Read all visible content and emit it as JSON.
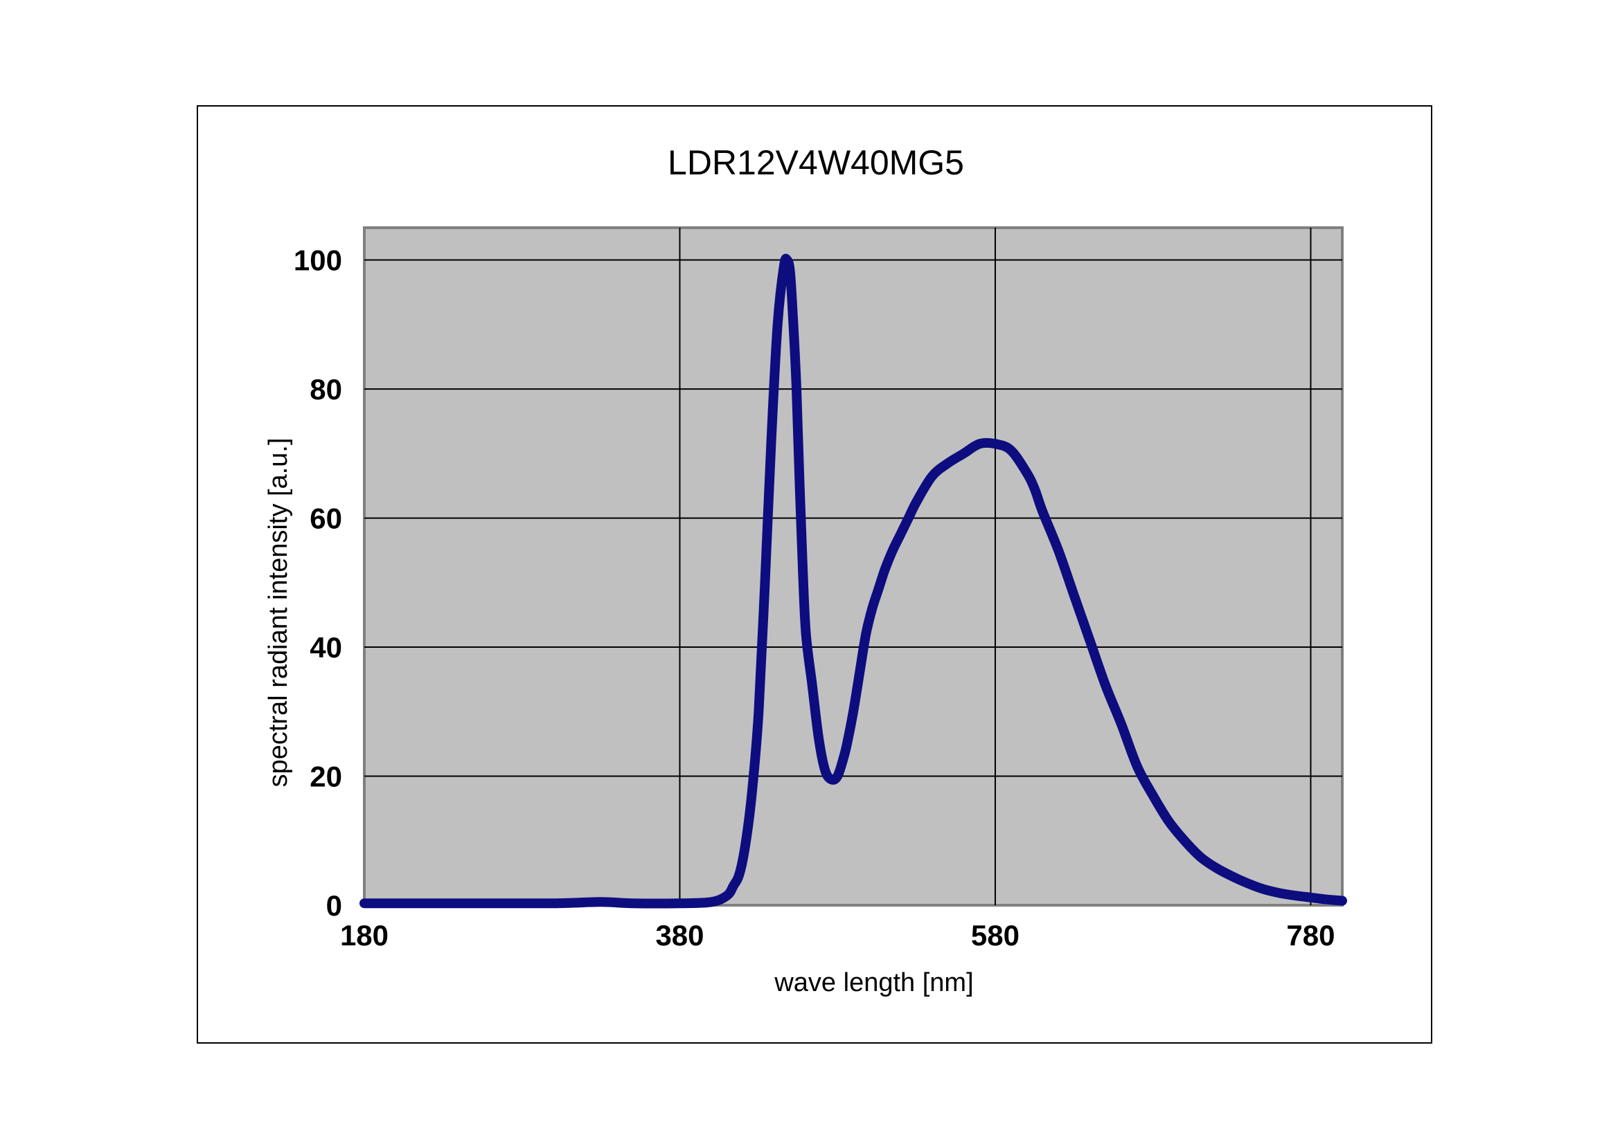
{
  "chart_data": {
    "type": "line",
    "title": "LDR12V4W40MG5",
    "xlabel": "wave length [nm]",
    "ylabel": "spectral radiant intensity [a.u.]",
    "xlim": [
      180,
      800
    ],
    "ylim": [
      0,
      105
    ],
    "xticks": [
      180,
      380,
      580,
      780
    ],
    "yticks": [
      0,
      20,
      40,
      60,
      80,
      100
    ],
    "grid": true,
    "legend": "none",
    "colors": {
      "line": "#0d0d80",
      "plot_background": "#c0c0c0",
      "grid": "#000000"
    },
    "series": [
      {
        "x": [
          180,
          250,
          300,
          330,
          350,
          380,
          400,
          410,
          414,
          418,
          422,
          426,
          430,
          434,
          438,
          442,
          446,
          448,
          450,
          452,
          454,
          456,
          458,
          460,
          464,
          468,
          472,
          476,
          480,
          484,
          486,
          490,
          494,
          498,
          502,
          506,
          510,
          515,
          520,
          525,
          530,
          540,
          550,
          560,
          570,
          580,
          590,
          600,
          605,
          610,
          620,
          630,
          640,
          650,
          660,
          670,
          680,
          690,
          700,
          710,
          720,
          730,
          740,
          750,
          760,
          770,
          780,
          790,
          800
        ],
        "y": [
          0.3,
          0.3,
          0.3,
          0.5,
          0.3,
          0.3,
          0.5,
          1.5,
          3,
          5,
          10,
          18,
          30,
          50,
          72,
          90,
          99,
          100,
          98,
          90,
          80,
          65,
          52,
          42,
          34,
          26,
          21,
          19.5,
          20,
          23,
          25,
          30,
          36,
          42,
          46,
          49,
          52,
          55,
          57.5,
          60,
          62.5,
          66.5,
          68.5,
          70,
          71.5,
          71.5,
          70.5,
          67,
          64.5,
          61,
          55,
          48,
          41,
          34,
          28,
          21.5,
          17,
          13,
          10,
          7.5,
          5.8,
          4.5,
          3.4,
          2.5,
          1.9,
          1.5,
          1.2,
          0.9,
          0.7
        ]
      }
    ]
  }
}
